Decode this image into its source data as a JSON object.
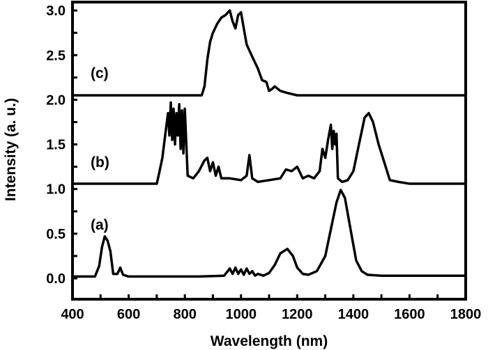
{
  "chart_data": {
    "type": "line",
    "title": "",
    "xlabel": "Wavelength (nm)",
    "ylabel": "Intensity (a. u.)",
    "xlim": [
      400,
      1800
    ],
    "ylim": [
      -0.1,
      3.05
    ],
    "xticks": [
      "400",
      "600",
      "800",
      "1000",
      "1200",
      "1400",
      "1600",
      "1800"
    ],
    "yticks": [
      "0.0",
      "0.5",
      "1.0",
      "1.5",
      "2.0",
      "2.5",
      "3.0"
    ],
    "grid": false,
    "line_color": "#000000",
    "series": [
      {
        "name": "(a)",
        "x": [
          400,
          480,
          490,
          495,
          505,
          515,
          525,
          535,
          545,
          560,
          570,
          580,
          600,
          700,
          850,
          940,
          960,
          970,
          980,
          990,
          1000,
          1010,
          1020,
          1030,
          1040,
          1050,
          1060,
          1080,
          1100,
          1120,
          1140,
          1165,
          1185,
          1200,
          1220,
          1240,
          1270,
          1300,
          1320,
          1340,
          1355,
          1370,
          1390,
          1410,
          1430,
          1450,
          1500,
          1800
        ],
        "y": [
          0.02,
          0.02,
          0.1,
          0.14,
          0.35,
          0.47,
          0.42,
          0.3,
          0.05,
          0.05,
          0.12,
          0.04,
          0.02,
          0.02,
          0.02,
          0.03,
          0.11,
          0.05,
          0.12,
          0.05,
          0.1,
          0.04,
          0.11,
          0.05,
          0.08,
          0.03,
          0.05,
          0.03,
          0.06,
          0.15,
          0.28,
          0.33,
          0.25,
          0.12,
          0.05,
          0.04,
          0.08,
          0.25,
          0.55,
          0.85,
          0.99,
          0.9,
          0.55,
          0.2,
          0.08,
          0.04,
          0.03,
          0.03
        ]
      },
      {
        "name": "(b)",
        "x": [
          400,
          700,
          710,
          720,
          730,
          740,
          745,
          750,
          755,
          760,
          765,
          770,
          775,
          780,
          785,
          790,
          795,
          800,
          810,
          830,
          850,
          870,
          880,
          890,
          900,
          910,
          920,
          930,
          960,
          1000,
          1020,
          1030,
          1040,
          1060,
          1100,
          1140,
          1160,
          1180,
          1200,
          1220,
          1240,
          1260,
          1280,
          1290,
          1300,
          1310,
          1320,
          1325,
          1330,
          1335,
          1340,
          1345,
          1360,
          1380,
          1400,
          1420,
          1440,
          1455,
          1470,
          1490,
          1510,
          1530,
          1560,
          1580,
          1600,
          1800
        ],
        "y": [
          1.06,
          1.06,
          1.2,
          1.35,
          1.6,
          1.85,
          1.6,
          1.97,
          1.55,
          1.9,
          1.5,
          1.85,
          1.6,
          1.95,
          1.45,
          1.88,
          1.4,
          1.9,
          1.15,
          1.12,
          1.2,
          1.32,
          1.35,
          1.2,
          1.3,
          1.15,
          1.25,
          1.12,
          1.12,
          1.1,
          1.15,
          1.38,
          1.12,
          1.08,
          1.1,
          1.12,
          1.22,
          1.2,
          1.25,
          1.12,
          1.15,
          1.12,
          1.2,
          1.45,
          1.35,
          1.55,
          1.72,
          1.45,
          1.65,
          1.5,
          1.62,
          1.12,
          1.08,
          1.1,
          1.2,
          1.5,
          1.8,
          1.85,
          1.75,
          1.5,
          1.3,
          1.1,
          1.08,
          1.07,
          1.06,
          1.06
        ]
      },
      {
        "name": "(c)",
        "x": [
          400,
          860,
          870,
          880,
          890,
          900,
          915,
          930,
          945,
          960,
          970,
          980,
          990,
          1000,
          1010,
          1020,
          1030,
          1045,
          1060,
          1075,
          1090,
          1100,
          1110,
          1120,
          1140,
          1160,
          1200,
          1800
        ],
        "y": [
          2.05,
          2.05,
          2.15,
          2.45,
          2.65,
          2.75,
          2.85,
          2.92,
          2.95,
          3.0,
          2.88,
          2.8,
          2.95,
          2.98,
          2.8,
          2.62,
          2.55,
          2.45,
          2.35,
          2.22,
          2.2,
          2.1,
          2.12,
          2.15,
          2.1,
          2.08,
          2.05,
          2.05
        ]
      }
    ]
  }
}
